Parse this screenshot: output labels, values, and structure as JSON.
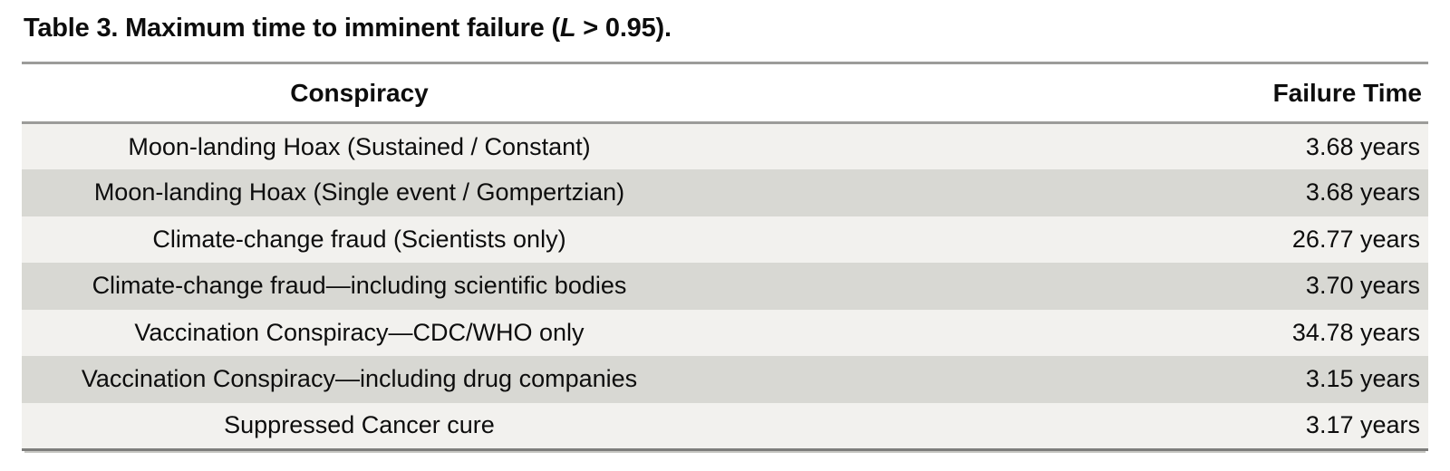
{
  "table": {
    "title": {
      "text_before_var": "Table 3. Maximum time to imminent failure (",
      "variable": "L",
      "text_after_var": " > 0.95)."
    },
    "header": {
      "conspiracy": "Conspiracy",
      "failure_time": "Failure Time"
    },
    "rows": [
      {
        "conspiracy": "Moon-landing Hoax (Sustained / Constant)",
        "failure_time": "3.68 years"
      },
      {
        "conspiracy": "Moon-landing Hoax (Single event / Gompertzian)",
        "failure_time": "3.68 years"
      },
      {
        "conspiracy": "Climate-change fraud (Scientists only)",
        "failure_time": "26.77 years"
      },
      {
        "conspiracy": "Climate-change fraud—including scientific bodies",
        "failure_time": "3.70 years"
      },
      {
        "conspiracy": "Vaccination Conspiracy—CDC/WHO only",
        "failure_time": "34.78 years"
      },
      {
        "conspiracy": "Vaccination Conspiracy—including drug companies",
        "failure_time": "3.15 years"
      },
      {
        "conspiracy": "Suppressed Cancer cure",
        "failure_time": "3.17 years"
      }
    ],
    "colors": {
      "row_light": "#f2f1ee",
      "row_dark": "#d8d8d3",
      "rule_gray": "#9c9c9a",
      "bottom_rule_dark": "#7e7e7c",
      "text": "#0d0d0d"
    }
  }
}
